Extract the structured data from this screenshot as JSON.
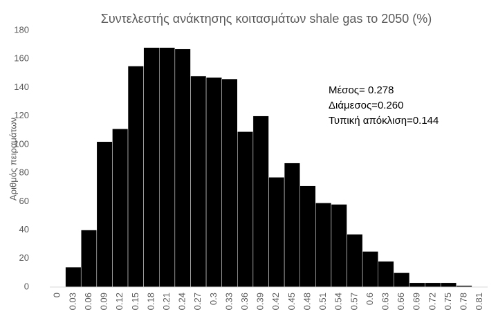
{
  "chart_data": {
    "type": "bar",
    "title": "Συντελεστής ανάκτησης κοιτασμάτων shale gas το 2050 (%)",
    "y_label": "Αριθμός πειραμάτων",
    "annotations": [
      "Μέσος= 0.278",
      "Διάμεσος=0.260",
      "Τυπική απόκλιση=0.144"
    ],
    "categories": [
      "0",
      "0.03",
      "0.06",
      "0.09",
      "0.12",
      "0.15",
      "0.18",
      "0.21",
      "0.24",
      "0.27",
      "0.3",
      "0.33",
      "0.36",
      "0.39",
      "0.42",
      "0.45",
      "0.48",
      "0.51",
      "0.54",
      "0.57",
      "0.6",
      "0.63",
      "0.66",
      "0.69",
      "0.72",
      "0.75",
      "0.78",
      "0.81"
    ],
    "values": [
      0,
      14,
      40,
      102,
      111,
      155,
      168,
      168,
      167,
      148,
      147,
      146,
      109,
      120,
      77,
      87,
      71,
      59,
      58,
      37,
      25,
      18,
      10,
      3,
      3,
      3,
      1,
      0
    ],
    "color": "#000000",
    "ylim": [
      0,
      180
    ],
    "yticks": [
      0,
      20,
      40,
      60,
      80,
      100,
      120,
      140,
      160,
      180
    ],
    "grid": false
  }
}
